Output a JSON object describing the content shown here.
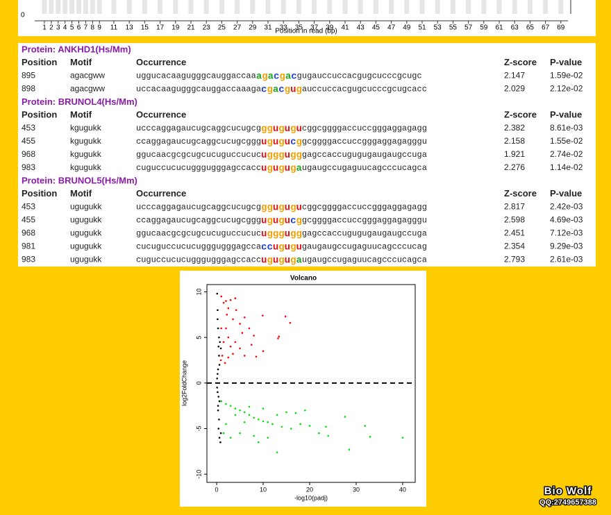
{
  "read_axis": {
    "y_label": "0",
    "ticks": [
      1,
      2,
      3,
      4,
      5,
      6,
      7,
      8,
      9,
      11,
      13,
      15,
      17,
      19,
      21,
      23,
      25,
      27,
      29,
      31,
      33,
      35,
      37,
      39,
      41,
      43,
      45,
      47,
      49,
      51,
      53,
      55,
      57,
      59,
      61,
      63,
      65,
      67,
      69
    ],
    "x_label": "Position in read (bp)"
  },
  "proteins": [
    {
      "title": "Protein: ANKHD1(Hs/Mm)",
      "columns": [
        "Position",
        "Motif",
        "Occurrence",
        "Z-score",
        "P-value"
      ],
      "rows": [
        {
          "position": 895,
          "motif": "agacgww",
          "occurrence": [
            "uggucacaagugggcauggaccaa",
            "agacgac",
            "gugauccuccacgugcucccgcugc"
          ],
          "z_score": 2.147,
          "p_value": "1.59e-02"
        },
        {
          "position": 898,
          "motif": "agacgww",
          "occurrence": [
            "uccacaagugggcauggaccaaaga",
            "cgacgug",
            "auccuccacgugcucccgcugcacc"
          ],
          "z_score": 2.029,
          "p_value": "2.12e-02"
        }
      ]
    },
    {
      "title": "Protein: BRUNOL4(Hs/Mm)",
      "columns": [
        "Position",
        "Motif",
        "Occurrence",
        "Z-score",
        "P-value"
      ],
      "rows": [
        {
          "position": 453,
          "motif": "kgugukk",
          "occurrence": [
            "ucccaggagaucugcaggcucugcg",
            "ggugugu",
            "cggcggggaccuccgggaggagagg"
          ],
          "z_score": 2.382,
          "p_value": "8.61e-03"
        },
        {
          "position": 455,
          "motif": "kgugukk",
          "occurrence": [
            "ccaggagaucugcaggcucugcggg",
            "ugugucg",
            "gcggggaccuccgggaggagagggu"
          ],
          "z_score": 2.158,
          "p_value": "1.55e-02"
        },
        {
          "position": 968,
          "motif": "kgugukk",
          "occurrence": [
            "ggucaacgcgcugcucuguccucuc",
            "ugggugg",
            "gagccaccugugugaugaugccuga"
          ],
          "z_score": 1.921,
          "p_value": "2.74e-02"
        },
        {
          "position": 983,
          "motif": "kgugukk",
          "occurrence": [
            "cuguccucucugggugggagccacc",
            "uguguga",
            "ugaugccugaguucagcccucagca"
          ],
          "z_score": 2.276,
          "p_value": "1.14e-02"
        }
      ]
    },
    {
      "title": "Protein: BRUNOL5(Hs/Mm)",
      "columns": [
        "Position",
        "Motif",
        "Occurrence",
        "Z-score",
        "P-value"
      ],
      "rows": [
        {
          "position": 453,
          "motif": "ugugukk",
          "occurrence": [
            "ucccaggagaucugcaggcucugcg",
            "ggugugu",
            "cggcggggaccuccgggaggagagg"
          ],
          "z_score": 2.817,
          "p_value": "2.42e-03"
        },
        {
          "position": 455,
          "motif": "ugugukk",
          "occurrence": [
            "ccaggagaucugcaggcucugcggg",
            "ugugucg",
            "gcggggaccuccgggaggagagggu"
          ],
          "z_score": 2.598,
          "p_value": "4.69e-03"
        },
        {
          "position": 968,
          "motif": "ugugukk",
          "occurrence": [
            "ggucaacgcgcugcucuguccucuc",
            "ugggugg",
            "gagccaccugugugaugaugccuga"
          ],
          "z_score": 2.451,
          "p_value": "7.12e-03"
        },
        {
          "position": 981,
          "motif": "ugugukk",
          "occurrence": [
            "cucuguccucucugggugggagcca",
            "ccugugu",
            "gaugaugccugaguucagcccucag"
          ],
          "z_score": 2.354,
          "p_value": "9.29e-03"
        },
        {
          "position": 983,
          "motif": "ugugukk",
          "occurrence": [
            "cuguccucucugggugggagccacc",
            "uguguga",
            "ugaugccugaguucagcccucagca"
          ],
          "z_score": 2.793,
          "p_value": "2.61e-03"
        }
      ]
    }
  ],
  "chart_data": {
    "type": "scatter",
    "title": "Volcano",
    "x_label": "-log10(padj)",
    "y_label": "log2FoldChange",
    "xlim": [
      -2.1,
      42.7
    ],
    "ylim": [
      -10.9,
      10.8
    ],
    "xticks": [
      0,
      10,
      20,
      30,
      40
    ],
    "yticks": [
      -10,
      -5,
      0,
      5,
      10
    ],
    "hline": 0,
    "series": [
      {
        "color": "#ff0000",
        "x": [
          1,
          1.5,
          2,
          2.5,
          3,
          4,
          4.2,
          3.5,
          5,
          6,
          7,
          8,
          9.9,
          13.4,
          13.2,
          14.8,
          15.8,
          2,
          2.5,
          3,
          3.5,
          4,
          5,
          6,
          1.5,
          1.2,
          1.8,
          2.5,
          7.5,
          10,
          1,
          2.2,
          0.9,
          5.5,
          8.5
        ],
        "y": [
          9.5,
          8.8,
          9,
          8.2,
          9.1,
          9.3,
          8,
          7,
          6.5,
          7.2,
          6,
          5.2,
          7.4,
          5.1,
          4.9,
          7.3,
          6.6,
          6,
          5,
          4,
          3.2,
          4.5,
          3.8,
          3,
          4.5,
          3,
          2.2,
          2.8,
          4.2,
          3.5,
          6,
          7.5,
          2.5,
          5.5,
          2.9
        ]
      },
      {
        "color": "#00e000",
        "x": [
          1,
          2,
          3,
          4,
          5,
          6,
          7,
          8,
          9,
          10,
          11,
          12,
          13,
          14,
          15,
          16,
          18,
          20,
          22,
          23.5,
          24,
          27.6,
          28.5,
          31.9,
          33,
          40,
          13,
          9,
          3,
          5,
          2,
          1.5,
          6,
          8,
          11,
          4,
          7,
          10,
          17,
          19
        ],
        "y": [
          -2,
          -2.3,
          -2.5,
          -2.8,
          -3,
          -3.2,
          -3.5,
          -3.8,
          -4,
          -4.2,
          -4.3,
          -4.5,
          -3.5,
          -4.8,
          -3.2,
          -5,
          -4.5,
          -4.7,
          -5.5,
          -4.8,
          -5.8,
          -3.7,
          -7.3,
          -4.7,
          -5.9,
          -6,
          -7.6,
          -6.5,
          -6,
          -5.5,
          -4.5,
          -5.5,
          -4.3,
          -5.8,
          -6,
          -3.5,
          -2.6,
          -2.8,
          -3.3,
          -3
        ]
      },
      {
        "color": "#000000",
        "x": [
          0.1,
          0.2,
          0.3,
          0.4,
          0.5,
          0.6,
          0.3,
          0.2,
          0.1,
          0.1,
          0.2,
          0.4,
          0.6,
          0.3,
          0.5,
          0.4,
          0.6,
          0.8,
          0.2,
          0.5,
          0.7,
          0.9,
          0.3,
          0.9
        ],
        "y": [
          9.8,
          8,
          6,
          4,
          3,
          2,
          1.5,
          1,
          0.5,
          -0.5,
          -1,
          -1.5,
          -2,
          -3,
          -4,
          -5,
          -6,
          -6.5,
          7,
          5,
          4.5,
          3.8,
          -2.5,
          -5.5
        ]
      }
    ]
  },
  "watermark": {
    "name": "Bio Wolf",
    "qq": "QQ:2749657388"
  }
}
